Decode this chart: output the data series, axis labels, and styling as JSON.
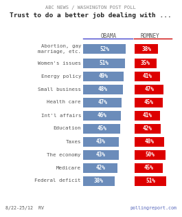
{
  "title_top": "ABC NEWS / WASHINGTON POST POLL",
  "title_main": "Trust to do a better job dealing with ...",
  "categories": [
    "Abortion, gay\nmarriage, etc.",
    "Women's issues",
    "Energy policy",
    "Small business",
    "Health care",
    "Int'l affairs",
    "Education",
    "Taxes",
    "The economy",
    "Medicare",
    "Federal deficit"
  ],
  "obama_values": [
    52,
    51,
    49,
    48,
    47,
    46,
    45,
    43,
    43,
    42,
    38
  ],
  "romney_values": [
    38,
    35,
    41,
    47,
    45,
    41,
    42,
    48,
    50,
    45,
    51
  ],
  "obama_color": "#6b8cba",
  "romney_color": "#dd0000",
  "white": "#FFFFFF",
  "label_color": "#555555",
  "obama_header": "OBAMA",
  "romney_header": "ROMNEY",
  "footer_left": "8/22-25/12  RV",
  "footer_right": "pollingreport.com",
  "bg_color": "#FFFFFF",
  "header_color": "#888888",
  "obama_underline_color": "#4444cc",
  "romney_underline_color": "#cc0000",
  "bar_scale": 0.0042
}
